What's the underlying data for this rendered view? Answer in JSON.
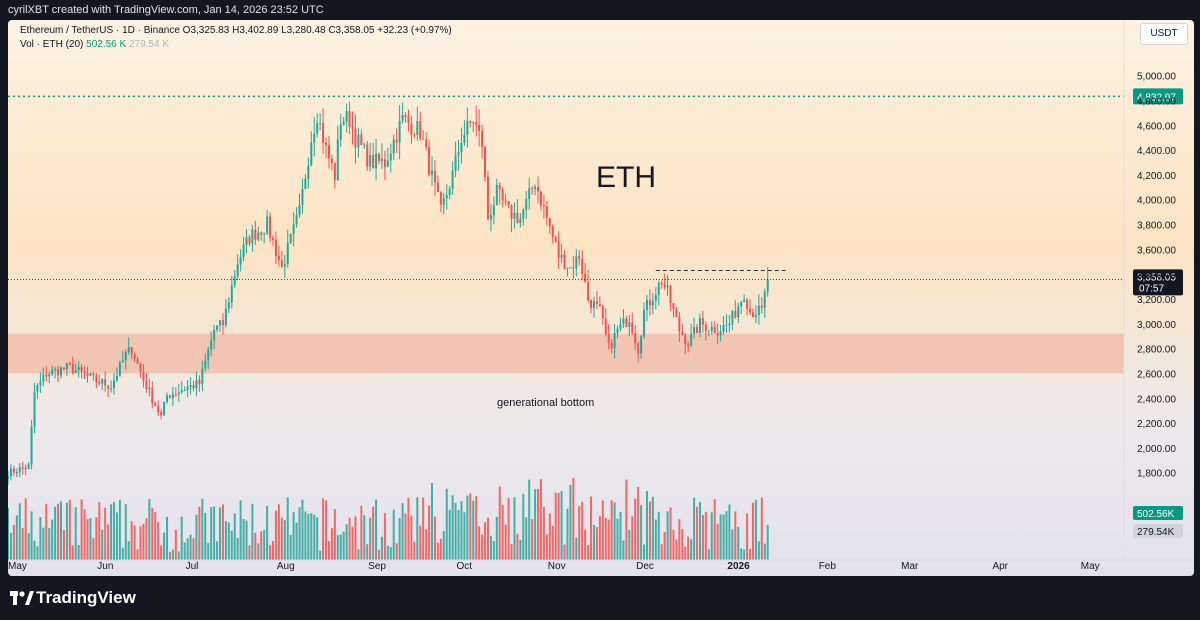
{
  "header": {
    "text": "cyrilXBT created with TradingView.com, Jan 14, 2026 23:52 UTC"
  },
  "legend": {
    "line1": "Ethereum / TetherUS · 1D · Binance  O3,325.83  H3,402.89  L3,280.48  C3,358.05  +32.23 (+0.97%)",
    "vol_label": "Vol · ETH (20)",
    "vol_value": "502.56 K",
    "vol_ma": "279.54 K"
  },
  "currency_button": "USDT",
  "footer": {
    "brand": "TradingView"
  },
  "colors": {
    "up": "#26a69a",
    "down": "#ef5350",
    "level": "#089981",
    "zone": "#f0b9a3"
  },
  "chart_data": {
    "type": "candlestick",
    "title": "ETH",
    "y_ticks": [
      "5,000.00",
      "4,800.00",
      "4,600.00",
      "4,400.00",
      "4,200.00",
      "4,000.00",
      "3,800.00",
      "3,600.00",
      "3,400.00",
      "3,200.00",
      "3,000.00",
      "2,800.00",
      "2,600.00",
      "2,400.00",
      "2,200.00",
      "2,000.00",
      "1,800.00"
    ],
    "y_tick_values": [
      5000,
      4800,
      4600,
      4400,
      4200,
      4000,
      3800,
      3600,
      3400,
      3200,
      3000,
      2800,
      2600,
      2400,
      2200,
      2000,
      1800
    ],
    "ylim": [
      1580,
      5110
    ],
    "x_tick_labels": [
      "May",
      "Jun",
      "Jul",
      "Aug",
      "Sep",
      "Oct",
      "Nov",
      "Dec",
      "2026",
      "Feb",
      "Mar",
      "Apr",
      "May"
    ],
    "x_tick_dates": [
      "2025-05-01",
      "2025-06-01",
      "2025-07-01",
      "2025-08-01",
      "2025-09-01",
      "2025-10-01",
      "2025-11-01",
      "2025-12-01",
      "2026-01-01",
      "2026-02-01",
      "2026-03-01",
      "2026-04-01",
      "2026-05-01"
    ],
    "date_range": [
      "2025-05-01",
      "2026-05-15"
    ],
    "price_anchors": [
      [
        "2025-05-01",
        1800
      ],
      [
        "2025-05-08",
        1850
      ],
      [
        "2025-05-10",
        2450
      ],
      [
        "2025-05-14",
        2600
      ],
      [
        "2025-05-22",
        2650
      ],
      [
        "2025-05-30",
        2550
      ],
      [
        "2025-06-05",
        2500
      ],
      [
        "2025-06-10",
        2750
      ],
      [
        "2025-06-12",
        2800
      ],
      [
        "2025-06-16",
        2550
      ],
      [
        "2025-06-22",
        2250
      ],
      [
        "2025-06-24",
        2420
      ],
      [
        "2025-06-30",
        2480
      ],
      [
        "2025-07-05",
        2520
      ],
      [
        "2025-07-10",
        2950
      ],
      [
        "2025-07-13",
        3000
      ],
      [
        "2025-07-18",
        3500
      ],
      [
        "2025-07-22",
        3700
      ],
      [
        "2025-07-28",
        3800
      ],
      [
        "2025-08-02",
        3450
      ],
      [
        "2025-08-08",
        3900
      ],
      [
        "2025-08-12",
        4500
      ],
      [
        "2025-08-14",
        4700
      ],
      [
        "2025-08-17",
        4400
      ],
      [
        "2025-08-20",
        4200
      ],
      [
        "2025-08-22",
        4650
      ],
      [
        "2025-08-25",
        4650
      ],
      [
        "2025-08-27",
        4500
      ],
      [
        "2025-09-01",
        4300
      ],
      [
        "2025-09-06",
        4300
      ],
      [
        "2025-09-12",
        4650
      ],
      [
        "2025-09-18",
        4550
      ],
      [
        "2025-09-25",
        3900
      ],
      [
        "2025-09-29",
        4200
      ],
      [
        "2025-10-02",
        4500
      ],
      [
        "2025-10-06",
        4650
      ],
      [
        "2025-10-09",
        4450
      ],
      [
        "2025-10-11",
        3850
      ],
      [
        "2025-10-14",
        4050
      ],
      [
        "2025-10-18",
        3900
      ],
      [
        "2025-10-22",
        3850
      ],
      [
        "2025-10-27",
        4150
      ],
      [
        "2025-10-31",
        3850
      ],
      [
        "2025-11-04",
        3550
      ],
      [
        "2025-11-08",
        3450
      ],
      [
        "2025-11-11",
        3550
      ],
      [
        "2025-11-14",
        3200
      ],
      [
        "2025-11-18",
        3100
      ],
      [
        "2025-11-21",
        2800
      ],
      [
        "2025-11-24",
        2950
      ],
      [
        "2025-11-28",
        3050
      ],
      [
        "2025-12-01",
        2800
      ],
      [
        "2025-12-03",
        3100
      ],
      [
        "2025-12-09",
        3350
      ],
      [
        "2025-12-11",
        3250
      ],
      [
        "2025-12-15",
        2950
      ],
      [
        "2025-12-18",
        2850
      ],
      [
        "2025-12-22",
        3000
      ],
      [
        "2025-12-28",
        2950
      ],
      [
        "2026-01-01",
        3000
      ],
      [
        "2026-01-06",
        3250
      ],
      [
        "2026-01-08",
        3100
      ],
      [
        "2026-01-12",
        3100
      ],
      [
        "2026-01-14",
        3358
      ]
    ],
    "levels": {
      "resistance_dotted": 4832.97,
      "last_price": 3358.05,
      "dashed_high": 3430
    },
    "zone": {
      "low": 2600,
      "high": 2920,
      "label": "generational bottom"
    },
    "price_labels": [
      {
        "text": "4,832.97",
        "value": 4832.97
      },
      {
        "text": "3,358.05",
        "sub": "07:57",
        "value": 3358.05
      }
    ],
    "volume_labels": {
      "current": "502.56K",
      "ma": "279.54K"
    }
  }
}
